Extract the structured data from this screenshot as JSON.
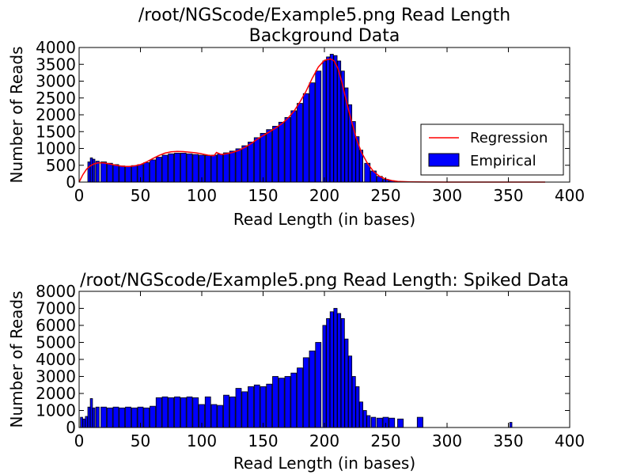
{
  "chart_data": [
    {
      "type": "bar",
      "title": "/root/NGScode/Example5.png Read Length\nBackground Data",
      "xlabel": "Read Length (in bases)",
      "ylabel": "Number of Reads",
      "xlim": [
        0,
        400
      ],
      "ylim": [
        0,
        4000
      ],
      "xticks": [
        "0",
        "50",
        "100",
        "150",
        "200",
        "250",
        "300",
        "350",
        "400"
      ],
      "yticks": [
        "0",
        "500",
        "1000",
        "1500",
        "2000",
        "2500",
        "3000",
        "3500",
        "4000"
      ],
      "grid": false,
      "legend_position": "right",
      "colors": {
        "bar_fill": "#0000ff",
        "bar_edge": "#000000",
        "regression": "#ff0000"
      },
      "series": [
        {
          "name": "Empirical",
          "type": "bar",
          "x": [
            8,
            10,
            12,
            15,
            20,
            25,
            30,
            35,
            40,
            45,
            50,
            55,
            60,
            65,
            70,
            75,
            80,
            85,
            90,
            95,
            100,
            105,
            110,
            115,
            120,
            125,
            130,
            135,
            140,
            145,
            150,
            155,
            160,
            165,
            170,
            175,
            180,
            185,
            190,
            195,
            200,
            203,
            206,
            209,
            212,
            215,
            218,
            221,
            224,
            227,
            230,
            235,
            240,
            245,
            250,
            255,
            260,
            265,
            270,
            275,
            280,
            290,
            300,
            320,
            340,
            360
          ],
          "values": [
            600,
            720,
            680,
            620,
            600,
            560,
            520,
            480,
            470,
            490,
            520,
            580,
            660,
            740,
            800,
            840,
            860,
            860,
            840,
            820,
            800,
            790,
            800,
            830,
            870,
            920,
            990,
            1080,
            1190,
            1320,
            1450,
            1560,
            1660,
            1780,
            1920,
            2120,
            2340,
            2630,
            2950,
            3300,
            3600,
            3720,
            3800,
            3760,
            3600,
            3300,
            2800,
            2300,
            1800,
            1350,
            950,
            560,
            330,
            170,
            80,
            40,
            20,
            12,
            8,
            5,
            4,
            3,
            2,
            1,
            1,
            0
          ]
        },
        {
          "name": "Regression",
          "type": "line",
          "x": [
            0,
            3,
            6,
            9,
            12,
            15,
            20,
            25,
            30,
            35,
            40,
            45,
            50,
            55,
            60,
            65,
            70,
            75,
            80,
            85,
            90,
            95,
            100,
            105,
            110,
            112,
            114,
            116,
            120,
            125,
            130,
            135,
            140,
            145,
            150,
            155,
            160,
            165,
            170,
            175,
            180,
            185,
            190,
            195,
            200,
            205,
            208,
            211,
            214,
            217,
            220,
            223,
            226,
            230,
            235,
            240,
            245,
            250,
            255,
            260,
            270,
            280,
            300,
            320,
            340,
            360,
            380
          ],
          "values": [
            0,
            220,
            380,
            480,
            540,
            570,
            570,
            540,
            500,
            470,
            460,
            480,
            520,
            600,
            700,
            790,
            860,
            900,
            910,
            905,
            890,
            870,
            840,
            800,
            780,
            880,
            850,
            820,
            840,
            880,
            940,
            1030,
            1140,
            1270,
            1380,
            1490,
            1600,
            1730,
            1890,
            2100,
            2380,
            2700,
            3080,
            3420,
            3620,
            3660,
            3600,
            3380,
            3000,
            2550,
            2100,
            1700,
            1300,
            900,
            560,
            320,
            170,
            90,
            45,
            20,
            8,
            3,
            1,
            0,
            0,
            0,
            0
          ]
        }
      ]
    },
    {
      "type": "bar",
      "title": "/root/NGScode/Example5.png Read Length: Spiked Data",
      "xlabel": "Read Length (in bases)",
      "ylabel": "Number of Reads",
      "xlim": [
        0,
        400
      ],
      "ylim": [
        0,
        8000
      ],
      "xticks": [
        "0",
        "50",
        "100",
        "150",
        "200",
        "250",
        "300",
        "350",
        "400"
      ],
      "yticks": [
        "0",
        "1000",
        "2000",
        "3000",
        "4000",
        "5000",
        "6000",
        "7000",
        "8000"
      ],
      "grid": false,
      "colors": {
        "bar_fill": "#0000ff",
        "bar_edge": "#000000"
      },
      "series": [
        {
          "name": "",
          "type": "bar",
          "x": [
            2,
            4,
            6,
            8,
            10,
            12,
            15,
            20,
            25,
            30,
            35,
            40,
            45,
            50,
            55,
            60,
            65,
            70,
            75,
            80,
            85,
            90,
            95,
            100,
            105,
            110,
            115,
            120,
            125,
            130,
            135,
            140,
            145,
            150,
            155,
            160,
            165,
            170,
            175,
            180,
            185,
            190,
            195,
            200,
            203,
            206,
            209,
            212,
            215,
            218,
            221,
            224,
            227,
            230,
            233,
            236,
            240,
            245,
            250,
            255,
            262,
            278,
            352
          ],
          "values": [
            600,
            500,
            650,
            1200,
            1700,
            1150,
            1200,
            1200,
            1150,
            1200,
            1150,
            1200,
            1150,
            1200,
            1150,
            1250,
            1750,
            1800,
            1750,
            1800,
            1750,
            1800,
            1750,
            1350,
            1800,
            1350,
            1300,
            1900,
            1800,
            2300,
            2100,
            2400,
            2500,
            2400,
            2550,
            3000,
            2900,
            3000,
            3200,
            3500,
            4100,
            4500,
            5000,
            6000,
            6400,
            6800,
            7000,
            6700,
            6400,
            5200,
            4200,
            3000,
            2400,
            1500,
            1000,
            700,
            600,
            550,
            600,
            550,
            500,
            600,
            300
          ]
        }
      ]
    }
  ]
}
